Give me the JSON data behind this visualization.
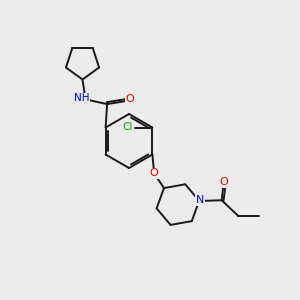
{
  "background_color": "#ebebeb",
  "bond_color": "#1a1a1a",
  "atom_colors": {
    "N": "#0000ee",
    "O": "#ee0000",
    "Cl": "#00aa00",
    "C": "#1a1a1a"
  },
  "figsize": [
    3.0,
    3.0
  ],
  "dpi": 100,
  "lw": 1.4,
  "fontsize": 7.5
}
